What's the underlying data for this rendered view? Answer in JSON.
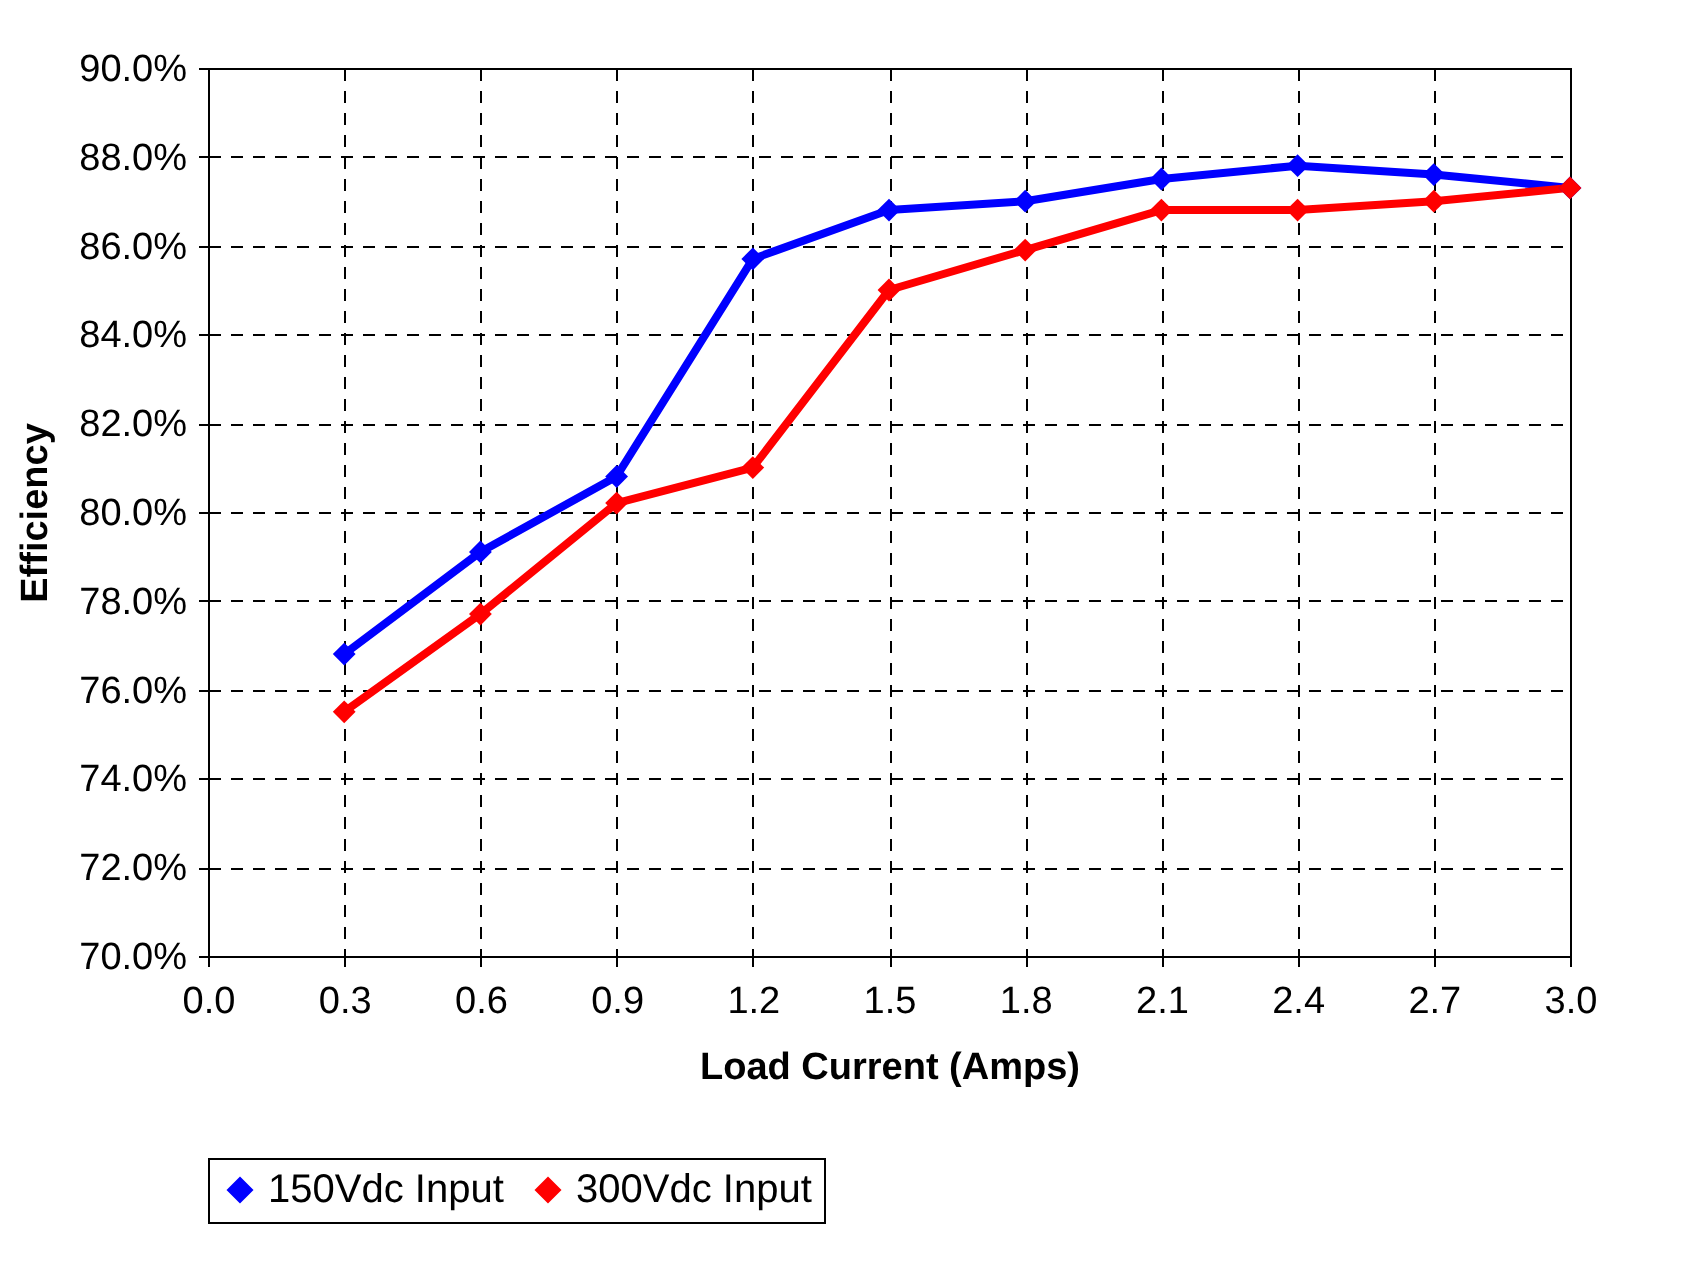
{
  "chart_data": {
    "type": "line",
    "xlabel": "Load Current (Amps)",
    "ylabel": "Efficiency",
    "x": [
      0.3,
      0.6,
      0.9,
      1.2,
      1.5,
      1.8,
      2.1,
      2.4,
      2.7,
      3.0
    ],
    "series": [
      {
        "name": "150Vdc Input",
        "color": "#0000ff",
        "values": [
          76.8,
          79.1,
          80.8,
          85.7,
          86.8,
          87.0,
          87.5,
          87.8,
          87.6,
          87.3
        ]
      },
      {
        "name": "300Vdc Input",
        "color": "#ff0000",
        "values": [
          75.5,
          77.7,
          80.2,
          81.0,
          85.0,
          85.9,
          86.8,
          86.8,
          87.0,
          87.3
        ]
      }
    ],
    "xlim": [
      0,
      3
    ],
    "xticks": [
      {
        "value": 0,
        "label": "0.0"
      },
      {
        "value": 0.3,
        "label": "0.3"
      },
      {
        "value": 0.6,
        "label": "0.6"
      },
      {
        "value": 0.9,
        "label": "0.9"
      },
      {
        "value": 1.2,
        "label": "1.2"
      },
      {
        "value": 1.5,
        "label": "1.5"
      },
      {
        "value": 1.8,
        "label": "1.8"
      },
      {
        "value": 2.1,
        "label": "2.1"
      },
      {
        "value": 2.4,
        "label": "2.4"
      },
      {
        "value": 2.7,
        "label": "2.7"
      },
      {
        "value": 3,
        "label": "3.0"
      }
    ],
    "ylim": [
      70,
      90
    ],
    "yticks": [
      {
        "value": 70,
        "label": "70.0%"
      },
      {
        "value": 72,
        "label": "72.0%"
      },
      {
        "value": 74,
        "label": "74.0%"
      },
      {
        "value": 76,
        "label": "76.0%"
      },
      {
        "value": 78,
        "label": "78.0%"
      },
      {
        "value": 80,
        "label": "80.0%"
      },
      {
        "value": 82,
        "label": "82.0%"
      },
      {
        "value": 84,
        "label": "84.0%"
      },
      {
        "value": 86,
        "label": "86.0%"
      },
      {
        "value": 88,
        "label": "88.0%"
      },
      {
        "value": 90,
        "label": "90.0%"
      }
    ],
    "grid": true,
    "legend": "bottom",
    "marker": "diamond",
    "line_style": "solid"
  }
}
